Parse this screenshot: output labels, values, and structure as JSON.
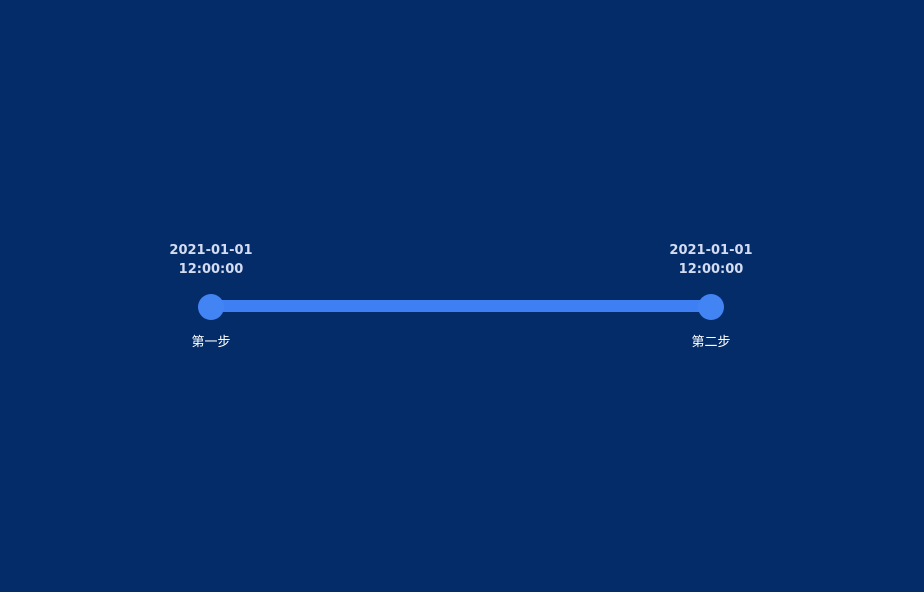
{
  "timeline": {
    "steps": [
      {
        "date": "2021-01-01",
        "time": "12:00:00",
        "label": "第一步"
      },
      {
        "date": "2021-01-01",
        "time": "12:00:00",
        "label": "第二步"
      }
    ]
  },
  "colors": {
    "background": "#042c69",
    "accent": "#3f7ff4",
    "node": "#4384f5",
    "time_text": "#d3dcf0",
    "label_text": "#ffffff"
  }
}
